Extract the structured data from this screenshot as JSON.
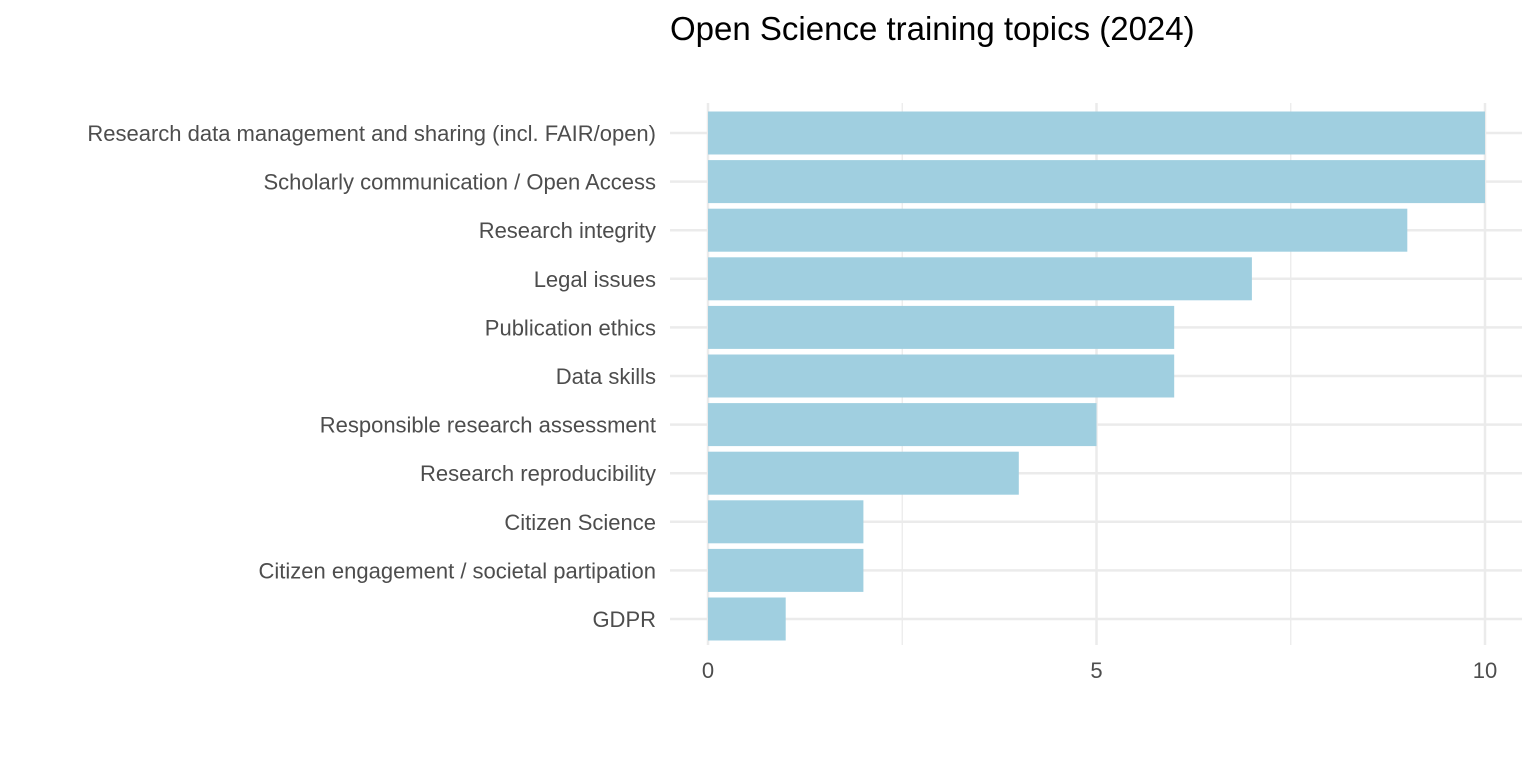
{
  "chart_data": {
    "type": "bar",
    "orientation": "horizontal",
    "title": "Open Science training topics (2024)",
    "xlabel": "",
    "ylabel": "",
    "categories": [
      "Research data management and sharing (incl. FAIR/open)",
      "Scholarly communication / Open Access",
      "Research integrity",
      "Legal issues",
      "Publication ethics",
      "Data skills",
      "Responsible research assessment",
      "Research reproducibility",
      "Citizen Science",
      "Citizen engagement / societal partipation",
      "GDPR"
    ],
    "values": [
      10,
      10,
      9,
      7,
      6,
      6,
      5,
      4,
      2,
      2,
      1
    ],
    "xlim": [
      0,
      10.5
    ],
    "x_ticks": [
      0,
      5,
      10
    ],
    "x_tick_labels": [
      "0",
      "5",
      "10"
    ],
    "x_minor_ticks": [
      2.5,
      7.5
    ],
    "grid": true,
    "legend": "none",
    "bar_color": "#a0cfe0",
    "grid_color": "#ebebeb",
    "label_color": "#4d4d4d"
  }
}
